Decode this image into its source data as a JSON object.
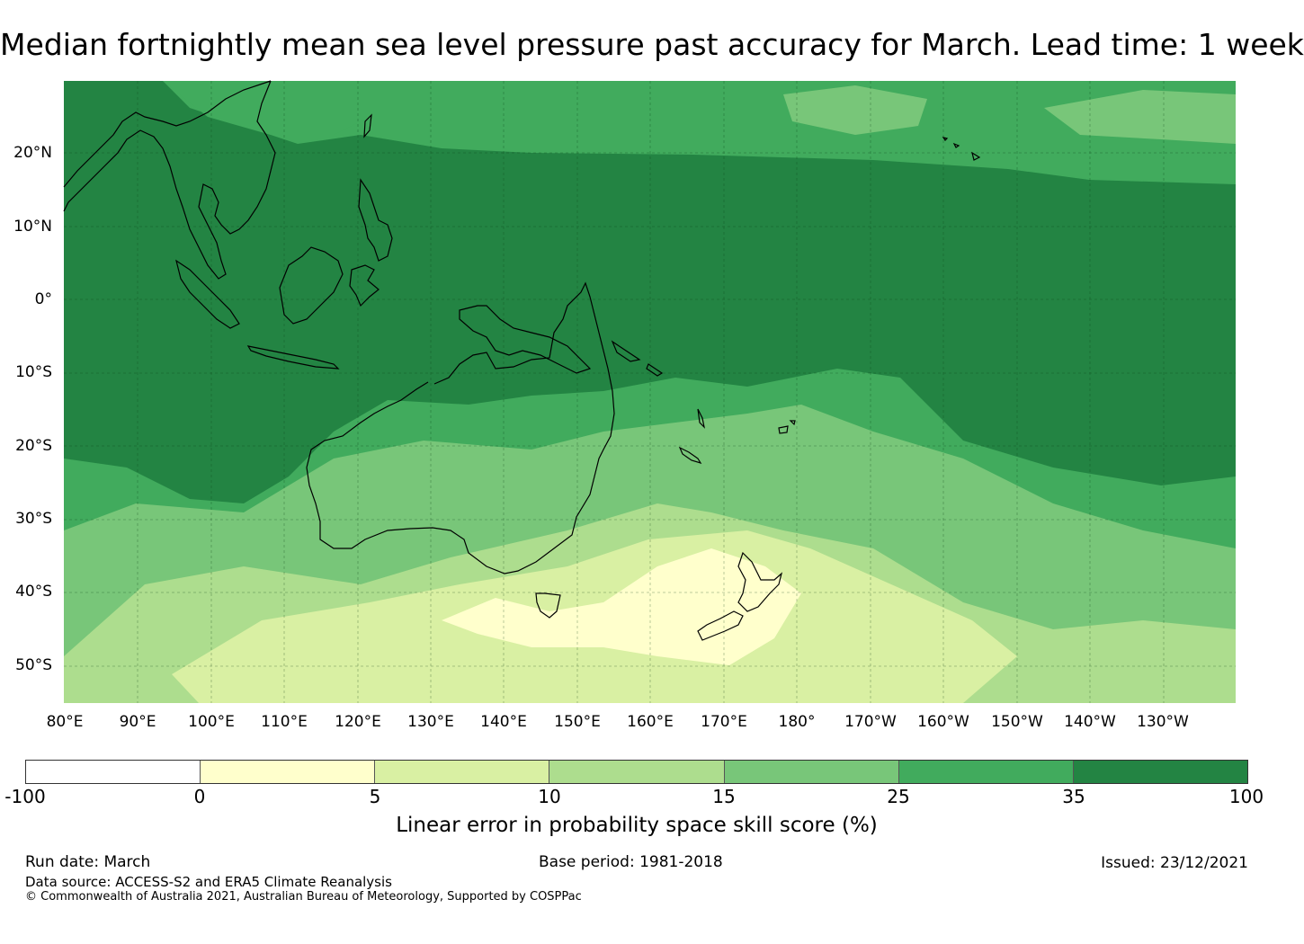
{
  "title": "Median fortnightly mean sea level pressure past accuracy for March. Lead time: 1 week",
  "map": {
    "lat_labels": [
      "20°N",
      "10°N",
      "0°",
      "10°S",
      "20°S",
      "30°S",
      "40°S",
      "50°S"
    ],
    "lon_labels": [
      "80°E",
      "90°E",
      "100°E",
      "110°E",
      "120°E",
      "130°E",
      "140°E",
      "150°E",
      "160°E",
      "170°E",
      "180°",
      "170°W",
      "160°W",
      "150°W",
      "140°W",
      "130°W"
    ]
  },
  "colorbar": {
    "ticks": [
      "-100",
      "0",
      "5",
      "10",
      "15",
      "25",
      "35",
      "100"
    ],
    "colors": [
      "#ffffff",
      "#ffffcc",
      "#d9f0a3",
      "#addd8e",
      "#78c679",
      "#41ab5d",
      "#238443"
    ],
    "label": "Linear error in probability space skill score (%)"
  },
  "footer": {
    "run_date": "Run date: March",
    "base_period": "Base period: 1981-2018",
    "issued": "Issued: 23/12/2021",
    "data_source": "Data source: ACCESS-S2 and ERA5 Climate Reanalysis",
    "copyright": "© Commonwealth of Australia 2021, Australian Bureau of Meteorology, Supported by COSPPac"
  }
}
